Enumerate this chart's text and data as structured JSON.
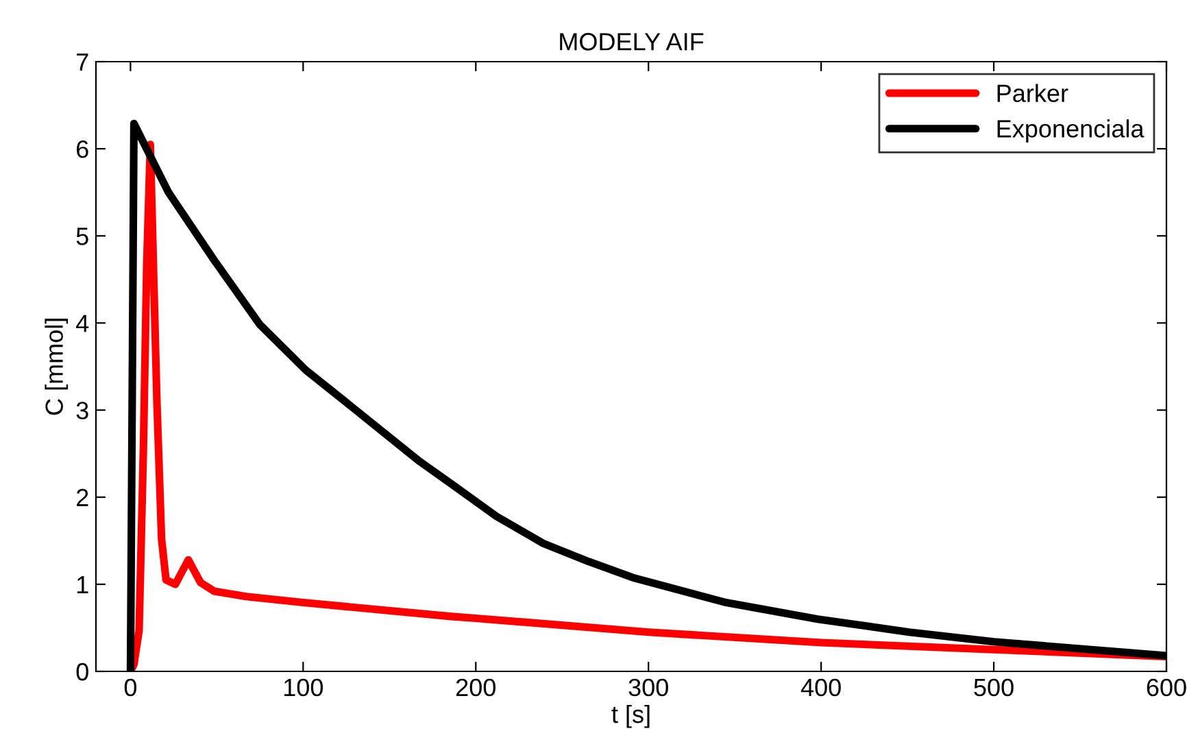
{
  "chart_data": {
    "type": "line",
    "title": "MODELY AIF",
    "xlabel": "t [s]",
    "ylabel": "C [mmol]",
    "xlim": [
      -20,
      600
    ],
    "xticks": [
      0,
      100,
      200,
      300,
      400,
      500,
      600
    ],
    "ylim": [
      0,
      7
    ],
    "yticks": [
      0,
      1,
      2,
      3,
      4,
      5,
      6,
      7
    ],
    "grid": false,
    "legend": "top right",
    "line_style": "solid",
    "marker": "none",
    "series": [
      {
        "name": "Parker",
        "color": "#ff0000",
        "x": [
          0,
          2,
          5,
          7.5,
          9.4,
          11.5,
          15.3,
          18,
          20.6,
          26,
          33.5,
          40.6,
          48.5,
          67,
          100,
          186,
          200,
          300,
          400,
          500,
          600
        ],
        "values": [
          0,
          0.08,
          0.47,
          2.57,
          4.67,
          6.05,
          3.1,
          1.52,
          1.05,
          1.0,
          1.28,
          1.02,
          0.92,
          0.86,
          0.79,
          0.63,
          0.61,
          0.45,
          0.33,
          0.25,
          0.17
        ]
      },
      {
        "name": "Exponenciala",
        "color": "#000000",
        "x": [
          0,
          2,
          22,
          48.5,
          75,
          101.5,
          128,
          167.5,
          186,
          212,
          239,
          265.5,
          292,
          345,
          398,
          451,
          500,
          600
        ],
        "values": [
          0,
          6.29,
          5.5,
          4.72,
          3.98,
          3.46,
          3.04,
          2.41,
          2.15,
          1.78,
          1.47,
          1.26,
          1.07,
          0.79,
          0.6,
          0.45,
          0.34,
          0.18
        ]
      }
    ]
  }
}
